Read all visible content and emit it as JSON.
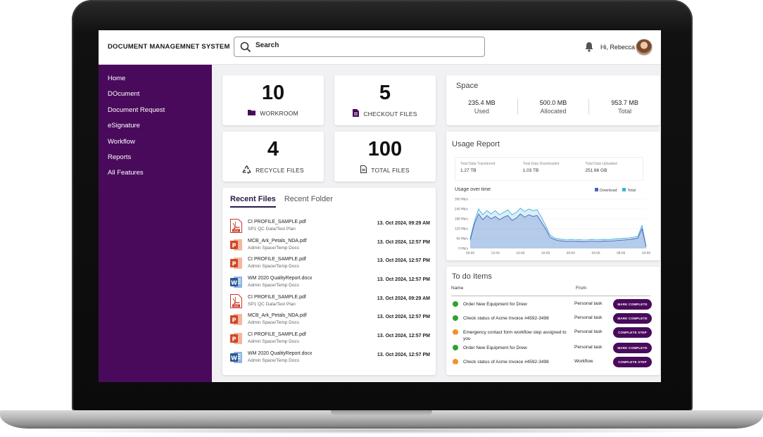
{
  "app": {
    "title": "DOCUMENT MANAGEMNET SYSTEM"
  },
  "search": {
    "placeholder": "Search"
  },
  "user": {
    "greeting": "Hi, Rebecca"
  },
  "sidebar": {
    "items": [
      {
        "label": "Home"
      },
      {
        "label": "DOcument"
      },
      {
        "label": "Document Request"
      },
      {
        "label": "eSignature"
      },
      {
        "label": "Workflow"
      },
      {
        "label": "Reports"
      },
      {
        "label": "All Features"
      }
    ]
  },
  "stats": [
    {
      "value": "10",
      "label": "WORKROOM",
      "icon": "folder-icon"
    },
    {
      "value": "5",
      "label": "CHECKOUT FILES",
      "icon": "file-icon"
    },
    {
      "value": "4",
      "label": "RECYCLE FILES",
      "icon": "recycle-icon"
    },
    {
      "value": "100",
      "label": "TOTAL FILES",
      "icon": "document-icon"
    }
  ],
  "space": {
    "title": "Space",
    "items": [
      {
        "value": "235.4 MB",
        "label": "Used"
      },
      {
        "value": "500.0 MB",
        "label": "Allocated"
      },
      {
        "value": "953.7 MB",
        "label": "Total"
      }
    ]
  },
  "usage": {
    "title": "Usage Report",
    "metrics": [
      {
        "label": "Total Data Transferred",
        "value": "1.27 TB"
      },
      {
        "label": "Total Data Downloaded",
        "value": "1.03 TB"
      },
      {
        "label": "Total Data Uploaded",
        "value": "251.66 GB"
      }
    ],
    "subtitle": "Usage over time",
    "legend": [
      "Download",
      "Total"
    ],
    "colors": {
      "download": "#4a5fc4",
      "total": "#3fb1d9"
    }
  },
  "chart_data": {
    "type": "area",
    "title": "Usage over time",
    "xlabel": "",
    "ylabel": "",
    "x_ticks": [
      "00:00",
      "12:00",
      "16:00",
      "20:00",
      "00:00",
      "04:00",
      "08:00",
      "04:00"
    ],
    "y_ticks": [
      "0 Mb/s",
      "60 Mb/s",
      "120 Mb/s",
      "180 Mb/s",
      "240 Mb/s",
      "300 Mb/s"
    ],
    "ylim": [
      0,
      300
    ],
    "series": [
      {
        "name": "Download",
        "values": [
          50,
          150,
          210,
          175,
          200,
          180,
          195,
          175,
          190,
          200,
          170,
          185,
          210,
          190,
          205,
          195,
          200,
          160,
          120,
          70,
          55,
          48,
          45,
          42,
          44,
          42,
          43,
          41,
          42,
          44,
          42,
          43,
          45,
          44,
          46,
          48,
          50,
          52,
          54,
          58,
          62,
          120,
          10
        ]
      },
      {
        "name": "Total",
        "values": [
          60,
          165,
          240,
          205,
          230,
          210,
          230,
          205,
          220,
          235,
          205,
          220,
          245,
          225,
          240,
          230,
          235,
          190,
          140,
          85,
          65,
          58,
          55,
          52,
          54,
          52,
          53,
          51,
          52,
          55,
          52,
          53,
          55,
          54,
          56,
          58,
          60,
          62,
          64,
          68,
          72,
          140,
          12
        ]
      }
    ]
  },
  "recent": {
    "tabs": [
      "Recent Files",
      "Recent Folder"
    ],
    "files": [
      {
        "name": "CI PROFILE_SAMPLE.pdf",
        "path": "SP1 QC Data/Test Plan",
        "date": "13. Oct 2024, 09:29 AM",
        "type": "pdf"
      },
      {
        "name": "MCB_Ark_Petals_NDA.pdf",
        "path": "Admin Space/Temp Docs",
        "date": "13. Oct 2024, 12:57 PM",
        "type": "ppt"
      },
      {
        "name": "CI PROFILE_SAMPLE.pdf",
        "path": "Admin Space/Temp Docs",
        "date": "13. Oct 2024, 12:57 PM",
        "type": "ppt"
      },
      {
        "name": "WM 2020 QualityReport.docx",
        "path": "Admin Space/Temp Docs",
        "date": "13. Oct 2024, 12:57 PM",
        "type": "word"
      },
      {
        "name": "CI PROFILE_SAMPLE.pdf",
        "path": "SP1 QC Data/Test Plan",
        "date": "13. Oct 2024, 09:29 AM",
        "type": "pdf"
      },
      {
        "name": "MCB_Ark_Petals_NDA.pdf",
        "path": "Admin Space/Temp Docs",
        "date": "13. Oct 2024, 12:57 PM",
        "type": "ppt"
      },
      {
        "name": "CI PROFILE_SAMPLE.pdf",
        "path": "Admin Space/Temp Docs",
        "date": "13. Oct 2024, 12:57 PM",
        "type": "ppt"
      },
      {
        "name": "WM 2020 QualityReport.docx",
        "path": "Admin Space/Temp Docs",
        "date": "13. Oct 2024, 12:57 PM",
        "type": "word"
      }
    ]
  },
  "todo": {
    "title": "To do Items",
    "columns": [
      "Name",
      "From"
    ],
    "items": [
      {
        "name": "Order New Equipment for Drew",
        "from": "Personal task",
        "action": "MARK COMPLETE",
        "status": "done"
      },
      {
        "name": "Check status of Acme Invoice #4592-3498",
        "from": "Personal task",
        "action": "MARK COMPLETE",
        "status": "done"
      },
      {
        "name": "Emergency contact form workflow step assigned to you",
        "from": "Personal task",
        "action": "COMPLETE STEP",
        "status": "pending"
      },
      {
        "name": "Order New Equipment for Drew",
        "from": "Personal task",
        "action": "MARK COMPLETE",
        "status": "done"
      },
      {
        "name": "Check status of Acme Invoice #4592-3498",
        "from": "Workflow",
        "action": "COMPLETE STEP",
        "status": "pending"
      }
    ],
    "colors": {
      "done": "#2fa12f",
      "pending": "#f0912a"
    }
  },
  "theme": {
    "accent": "#4a0a5c"
  }
}
